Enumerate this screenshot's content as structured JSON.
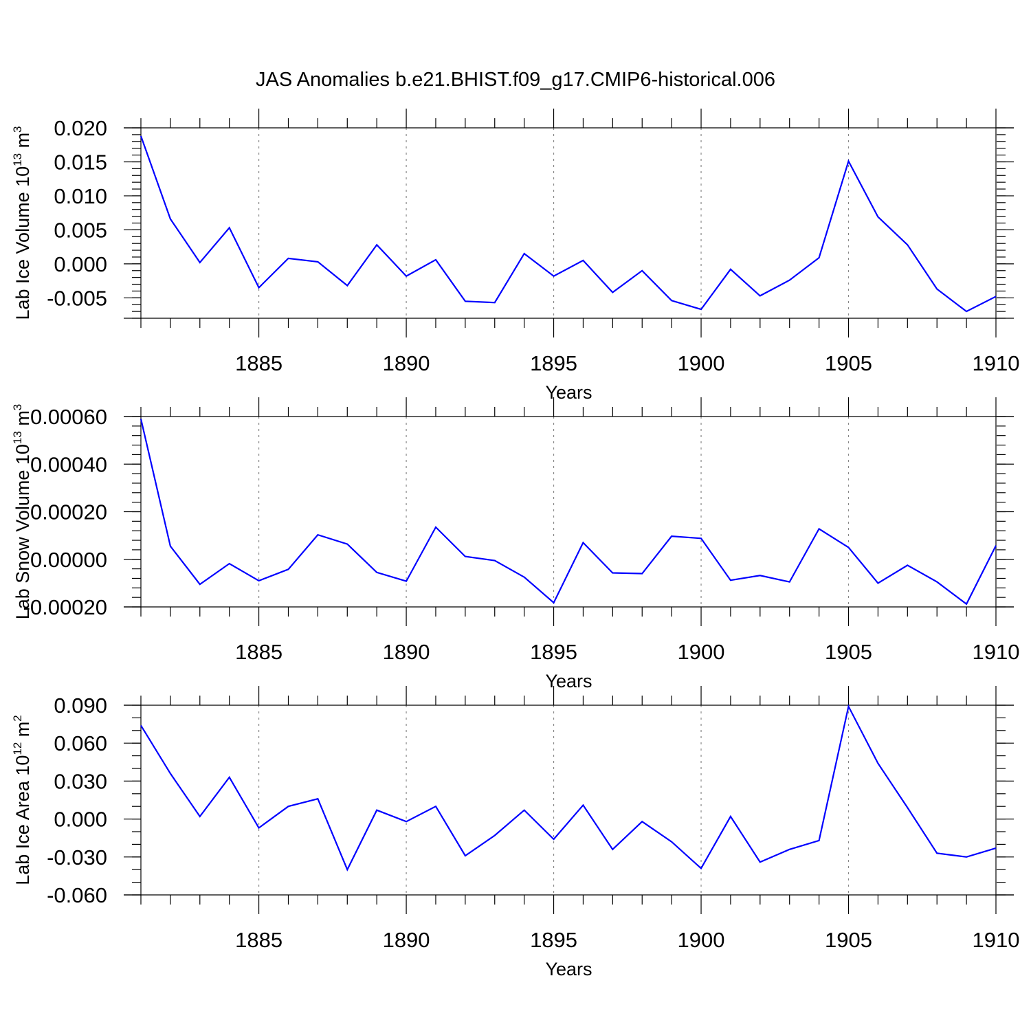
{
  "title": "JAS Anomalies b.e21.BHIST.f09_g17.CMIP6-historical.006",
  "colors": {
    "series": "#0000ff",
    "grid": "#888888",
    "axis": "#000000"
  },
  "chart_data": [
    {
      "type": "line",
      "ylabel_main": "Lab Ice Volume 10",
      "ylabel_exp": "13",
      "ylabel_unit": " m",
      "ylabel_unit_exp": "3",
      "xlabel": "Years",
      "xlim": [
        1881,
        1910
      ],
      "ylim": [
        -0.008,
        0.02
      ],
      "yticks": [
        0.02,
        0.015,
        0.01,
        0.005,
        0.0,
        -0.005
      ],
      "ytick_labels": [
        "0.020",
        "0.015",
        "0.010",
        "0.005",
        "0.000",
        "-0.005"
      ],
      "yminor_step": 0.001,
      "xticks": [
        1885,
        1890,
        1895,
        1900,
        1905,
        1910
      ],
      "xtick_labels": [
        "1885",
        "1890",
        "1895",
        "1900",
        "1905",
        "1910"
      ],
      "x": [
        1881,
        1882,
        1883,
        1884,
        1885,
        1886,
        1887,
        1888,
        1889,
        1890,
        1891,
        1892,
        1893,
        1894,
        1895,
        1896,
        1897,
        1898,
        1899,
        1900,
        1901,
        1902,
        1903,
        1904,
        1905,
        1906,
        1907,
        1908,
        1909,
        1910
      ],
      "values": [
        0.0188,
        0.0066,
        0.0002,
        0.0053,
        -0.0035,
        0.0008,
        0.0003,
        -0.0032,
        0.0028,
        -0.0018,
        0.0006,
        -0.0055,
        -0.0057,
        0.0015,
        -0.0018,
        0.0005,
        -0.0042,
        -0.001,
        -0.0054,
        -0.0067,
        -0.0008,
        -0.0047,
        -0.0024,
        0.0009,
        0.0151,
        0.0069,
        0.0028,
        -0.0037,
        -0.007,
        -0.0048
      ]
    },
    {
      "type": "line",
      "ylabel_main": "Lab Snow Volume 10",
      "ylabel_exp": "13",
      "ylabel_unit": " m",
      "ylabel_unit_exp": "3",
      "xlabel": "Years",
      "xlim": [
        1881,
        1910
      ],
      "ylim": [
        -0.0002,
        0.0006
      ],
      "yticks": [
        0.0006,
        0.0004,
        0.0002,
        0.0,
        -0.0002
      ],
      "ytick_labels": [
        "0.00060",
        "0.00040",
        "0.00020",
        "0.00000",
        "-0.00020"
      ],
      "yminor_step": 4e-05,
      "xticks": [
        1885,
        1890,
        1895,
        1900,
        1905,
        1910
      ],
      "xtick_labels": [
        "1885",
        "1890",
        "1895",
        "1900",
        "1905",
        "1910"
      ],
      "x": [
        1881,
        1882,
        1883,
        1884,
        1885,
        1886,
        1887,
        1888,
        1889,
        1890,
        1891,
        1892,
        1893,
        1894,
        1895,
        1896,
        1897,
        1898,
        1899,
        1900,
        1901,
        1902,
        1903,
        1904,
        1905,
        1906,
        1907,
        1908,
        1909,
        1910
      ],
      "values": [
        0.00059,
        5.5e-05,
        -0.000105,
        -1.8e-05,
        -9e-05,
        -4.2e-05,
        0.000103,
        6.4e-05,
        -5.5e-05,
        -9.2e-05,
        0.000135,
        1.2e-05,
        -5e-06,
        -7.5e-05,
        -0.000182,
        7e-05,
        -5.7e-05,
        -6e-05,
        9.7e-05,
        8.8e-05,
        -8.8e-05,
        -6.8e-05,
        -9.5e-05,
        0.000128,
        5e-05,
        -0.0001,
        -2.5e-05,
        -9.5e-05,
        -0.000188,
        5.8e-05
      ]
    },
    {
      "type": "line",
      "ylabel_main": "Lab Ice Area 10",
      "ylabel_exp": "12",
      "ylabel_unit": " m",
      "ylabel_unit_exp": "2",
      "xlabel": "Years",
      "xlim": [
        1881,
        1910
      ],
      "ylim": [
        -0.06,
        0.09
      ],
      "yticks": [
        0.09,
        0.06,
        0.03,
        0.0,
        -0.03,
        -0.06
      ],
      "ytick_labels": [
        "0.090",
        "0.060",
        "0.030",
        "0.000",
        "-0.030",
        "-0.060"
      ],
      "yminor_step": 0.01,
      "xticks": [
        1885,
        1890,
        1895,
        1900,
        1905,
        1910
      ],
      "xtick_labels": [
        "1885",
        "1890",
        "1895",
        "1900",
        "1905",
        "1910"
      ],
      "x": [
        1881,
        1882,
        1883,
        1884,
        1885,
        1886,
        1887,
        1888,
        1889,
        1890,
        1891,
        1892,
        1893,
        1894,
        1895,
        1896,
        1897,
        1898,
        1899,
        1900,
        1901,
        1902,
        1903,
        1904,
        1905,
        1906,
        1907,
        1908,
        1909,
        1910
      ],
      "values": [
        0.074,
        0.036,
        0.002,
        0.033,
        -0.007,
        0.01,
        0.016,
        -0.04,
        0.007,
        -0.002,
        0.01,
        -0.029,
        -0.013,
        0.007,
        -0.016,
        0.011,
        -0.024,
        -0.002,
        -0.018,
        -0.039,
        0.002,
        -0.034,
        -0.024,
        -0.017,
        0.089,
        0.044,
        0.009,
        -0.027,
        -0.03,
        -0.023
      ]
    }
  ]
}
